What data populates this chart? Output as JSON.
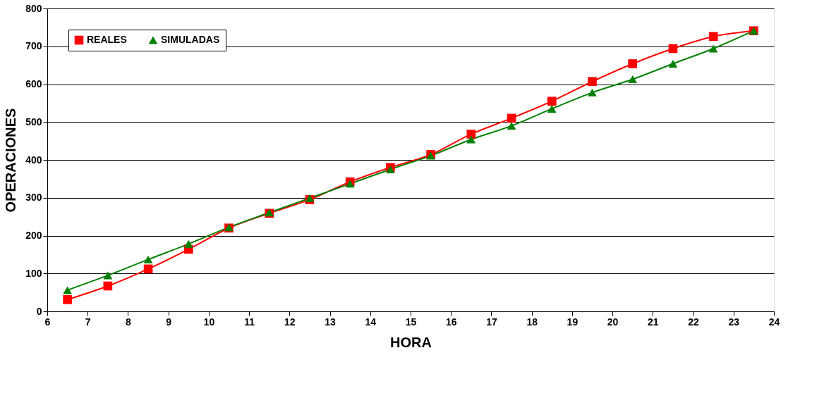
{
  "chart_data": {
    "type": "line",
    "xlabel": "HORA",
    "ylabel": "OPERACIONES",
    "x": [
      6.5,
      7.5,
      8.5,
      9.5,
      10.5,
      11.5,
      12.5,
      13.5,
      14.5,
      15.5,
      16.5,
      17.5,
      18.5,
      19.5,
      20.5,
      21.5,
      22.5,
      23.5
    ],
    "series": [
      {
        "name": "REALES",
        "color": "#ff0000",
        "marker": "square",
        "values": [
          31,
          67,
          112,
          164,
          220,
          259,
          295,
          342,
          380,
          414,
          468,
          510,
          555,
          607,
          654,
          694,
          726,
          741
        ]
      },
      {
        "name": "SIMULADAS",
        "color": "#008000",
        "marker": "triangle",
        "values": [
          56,
          95,
          137,
          178,
          222,
          261,
          299,
          337,
          375,
          411,
          454,
          490,
          535,
          578,
          613,
          654,
          694,
          741
        ]
      }
    ],
    "xlim": [
      6,
      24
    ],
    "xticks": [
      6,
      7,
      8,
      9,
      10,
      11,
      12,
      13,
      14,
      15,
      16,
      17,
      18,
      19,
      20,
      21,
      22,
      23,
      24
    ],
    "ylim": [
      0,
      800
    ],
    "yticks": [
      0,
      100,
      200,
      300,
      400,
      500,
      600,
      700,
      800
    ],
    "grid": "y",
    "legend": "top left",
    "line_style": "solid"
  }
}
